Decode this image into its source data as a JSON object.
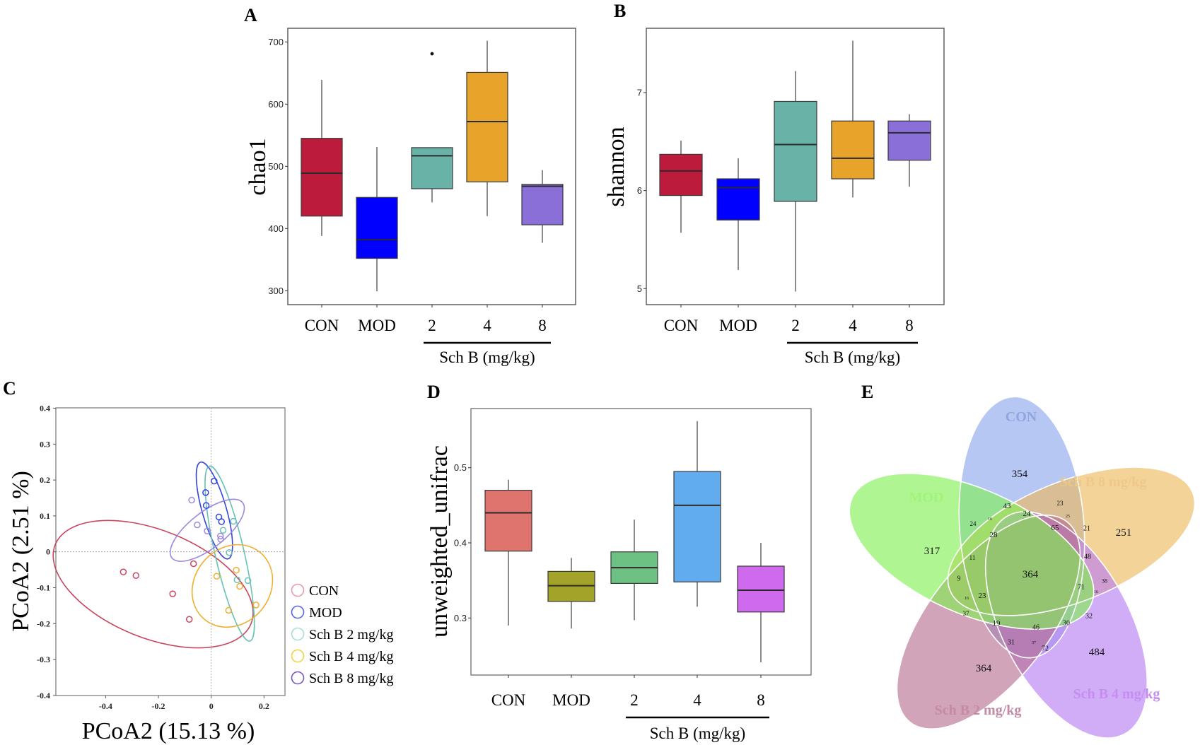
{
  "figure": {
    "panel_labels": [
      "A",
      "B",
      "C",
      "D",
      "E"
    ]
  },
  "chart_data": [
    {
      "panel": "A",
      "type": "box",
      "title": "",
      "xlabel": "",
      "ylabel": "chao1",
      "ylim": [
        288,
        722
      ],
      "yticks": [
        300,
        400,
        500,
        600,
        700
      ],
      "categories": [
        "CON",
        "MOD",
        "2",
        "4",
        "8"
      ],
      "group_label": "Sch B (mg/kg)",
      "group_span": [
        "2",
        "8"
      ],
      "grid": false,
      "boxes": [
        {
          "name": "CON",
          "color": "#BC1B3C",
          "min": 388,
          "q1": 420,
          "median": 489,
          "q3": 545,
          "max": 639,
          "outliers": []
        },
        {
          "name": "MOD",
          "color": "#0000FF",
          "min": 299,
          "q1": 352,
          "median": 382,
          "q3": 450,
          "max": 531,
          "outliers": []
        },
        {
          "name": "2",
          "color": "#68B2A8",
          "min": 442,
          "q1": 464,
          "median": 517,
          "q3": 530,
          "max": 530,
          "outliers": [
            681
          ]
        },
        {
          "name": "4",
          "color": "#E8A42A",
          "min": 420,
          "q1": 475,
          "median": 572,
          "q3": 651,
          "max": 702,
          "outliers": []
        },
        {
          "name": "8",
          "color": "#8B6FD9",
          "min": 377,
          "q1": 406,
          "median": 468,
          "q3": 471,
          "max": 494,
          "outliers": []
        }
      ]
    },
    {
      "panel": "B",
      "type": "box",
      "title": "",
      "xlabel": "",
      "ylabel": "shannon",
      "ylim": [
        4.83,
        7.65
      ],
      "yticks": [
        5,
        6,
        7
      ],
      "categories": [
        "CON",
        "MOD",
        "2",
        "4",
        "8"
      ],
      "group_label": "Sch B (mg/kg)",
      "group_span": [
        "2",
        "8"
      ],
      "grid": false,
      "boxes": [
        {
          "name": "CON",
          "color": "#BC1B3C",
          "min": 5.57,
          "q1": 5.95,
          "median": 6.2,
          "q3": 6.37,
          "max": 6.51,
          "outliers": []
        },
        {
          "name": "MOD",
          "color": "#0000FF",
          "min": 5.19,
          "q1": 5.7,
          "median": 6.03,
          "q3": 6.12,
          "max": 6.33,
          "outliers": []
        },
        {
          "name": "2",
          "color": "#68B2A8",
          "min": 4.97,
          "q1": 5.89,
          "median": 6.47,
          "q3": 6.91,
          "max": 7.22,
          "outliers": []
        },
        {
          "name": "4",
          "color": "#E8A42A",
          "min": 5.93,
          "q1": 6.12,
          "median": 6.33,
          "q3": 6.71,
          "max": 7.53,
          "outliers": []
        },
        {
          "name": "8",
          "color": "#8B6FD9",
          "min": 6.04,
          "q1": 6.31,
          "median": 6.59,
          "q3": 6.71,
          "max": 6.78,
          "outliers": []
        }
      ]
    },
    {
      "panel": "C",
      "type": "scatter",
      "title": "",
      "xlabel": "PCoA2 (15.13 %)",
      "ylabel": "PCoA2 (2.51 %)",
      "xlim": [
        -0.59,
        0.28
      ],
      "ylim": [
        -0.4,
        0.4
      ],
      "xticks": [
        -0.4,
        -0.2,
        0,
        0.2
      ],
      "yticks": [
        -0.4,
        -0.3,
        -0.2,
        -0.1,
        0,
        0.1,
        0.2,
        0.3,
        0.4
      ],
      "reference_lines": {
        "x": 0,
        "y": 0
      },
      "legend_position": "right",
      "series": [
        {
          "name": "CON",
          "color": "#C8465E",
          "legend_color": "#E89AAA",
          "points": [
            [
              -0.333,
              -0.056
            ],
            [
              -0.285,
              -0.066
            ],
            [
              -0.146,
              -0.117
            ],
            [
              -0.083,
              -0.188
            ],
            [
              -0.067,
              -0.033
            ]
          ],
          "ellipse": {
            "cx": -0.22,
            "cy": -0.09,
            "rx": 0.4,
            "ry": 0.15,
            "angle_deg": 22
          }
        },
        {
          "name": "MOD",
          "color": "#3344DD",
          "legend_color": "#5566EE",
          "points": [
            [
              0.011,
              0.197
            ],
            [
              -0.021,
              0.165
            ],
            [
              -0.019,
              0.129
            ],
            [
              0.029,
              0.097
            ],
            [
              0.039,
              0.084
            ]
          ],
          "ellipse": {
            "cx": 0.012,
            "cy": 0.115,
            "rx": 0.046,
            "ry": 0.14,
            "angle_deg": -16
          }
        },
        {
          "name": "Sch B 2 mg/kg",
          "color": "#66C2B4",
          "legend_color": "#A8DED6",
          "points": [
            [
              0.084,
              0.085
            ],
            [
              0.045,
              0.06
            ],
            [
              0.068,
              -0.002
            ],
            [
              0.098,
              -0.078
            ],
            [
              0.139,
              -0.08
            ]
          ],
          "ellipse": {
            "cx": 0.07,
            "cy": -0.005,
            "rx": 0.055,
            "ry": 0.25,
            "angle_deg": -13
          }
        },
        {
          "name": "Sch B 4 mg/kg",
          "color": "#EEB030",
          "legend_color": "#F5D040",
          "points": [
            [
              0.095,
              -0.051
            ],
            [
              0.021,
              -0.068
            ],
            [
              0.108,
              -0.096
            ],
            [
              0.17,
              -0.148
            ],
            [
              0.066,
              -0.163
            ]
          ],
          "ellipse": {
            "cx": 0.08,
            "cy": -0.095,
            "rx": 0.165,
            "ry": 0.105,
            "angle_deg": -50
          }
        },
        {
          "name": "Sch B 8 mg/kg",
          "color": "#9C88E0",
          "legend_color": "#7A55C0",
          "points": [
            [
              -0.074,
              0.144
            ],
            [
              -0.053,
              0.075
            ],
            [
              -0.015,
              0.058
            ],
            [
              0.035,
              0.044
            ],
            [
              0.036,
              0.035
            ]
          ],
          "ellipse": {
            "cx": -0.015,
            "cy": 0.06,
            "rx": 0.17,
            "ry": 0.05,
            "angle_deg": -38
          }
        }
      ]
    },
    {
      "panel": "D",
      "type": "box",
      "title": "",
      "xlabel": "",
      "ylabel": "unweighted_unifrac",
      "ylim": [
        0.225,
        0.578
      ],
      "yticks": [
        0.3,
        0.4,
        0.5
      ],
      "categories": [
        "CON",
        "MOD",
        "2",
        "4",
        "8"
      ],
      "group_label": "Sch B (mg/kg)",
      "group_span": [
        "2",
        "8"
      ],
      "grid": false,
      "boxes": [
        {
          "name": "CON",
          "color": "#DE746D",
          "min": 0.29,
          "q1": 0.389,
          "median": 0.44,
          "q3": 0.47,
          "max": 0.484,
          "outliers": []
        },
        {
          "name": "MOD",
          "color": "#A3A329",
          "min": 0.286,
          "q1": 0.322,
          "median": 0.343,
          "q3": 0.362,
          "max": 0.38,
          "outliers": []
        },
        {
          "name": "2",
          "color": "#6CC183",
          "min": 0.297,
          "q1": 0.346,
          "median": 0.367,
          "q3": 0.388,
          "max": 0.431,
          "outliers": []
        },
        {
          "name": "4",
          "color": "#61ACEE",
          "min": 0.315,
          "q1": 0.348,
          "median": 0.45,
          "q3": 0.495,
          "max": 0.562,
          "outliers": []
        },
        {
          "name": "8",
          "color": "#CF69EE",
          "min": 0.241,
          "q1": 0.308,
          "median": 0.337,
          "q3": 0.369,
          "max": 0.4,
          "outliers": []
        }
      ]
    },
    {
      "panel": "E",
      "type": "venn",
      "title": "",
      "sets": [
        {
          "name": "CON",
          "color": "#8AA4EC",
          "label_color": "#8FA6E0",
          "unique": 354
        },
        {
          "name": "Sch B 8 mg/kg",
          "color": "#EDB85A",
          "label_color": "#EDC88A",
          "unique": 251
        },
        {
          "name": "Sch B 4 mg/kg",
          "color": "#B67AF2",
          "label_color": "#C58DF2",
          "unique": 484
        },
        {
          "name": "Sch B 2 mg/kg",
          "color": "#B56C8E",
          "label_color": "#C48AA4",
          "unique": 364
        },
        {
          "name": "MOD",
          "color": "#7EF050",
          "label_color": "#A2F37A",
          "unique": 317
        }
      ],
      "core": 364,
      "region_values": [
        43,
        24,
        23,
        25,
        65,
        21,
        48,
        16,
        24,
        28,
        11,
        9,
        16,
        23,
        37,
        19,
        31,
        37,
        72,
        46,
        30,
        32,
        71,
        16,
        38
      ]
    }
  ]
}
